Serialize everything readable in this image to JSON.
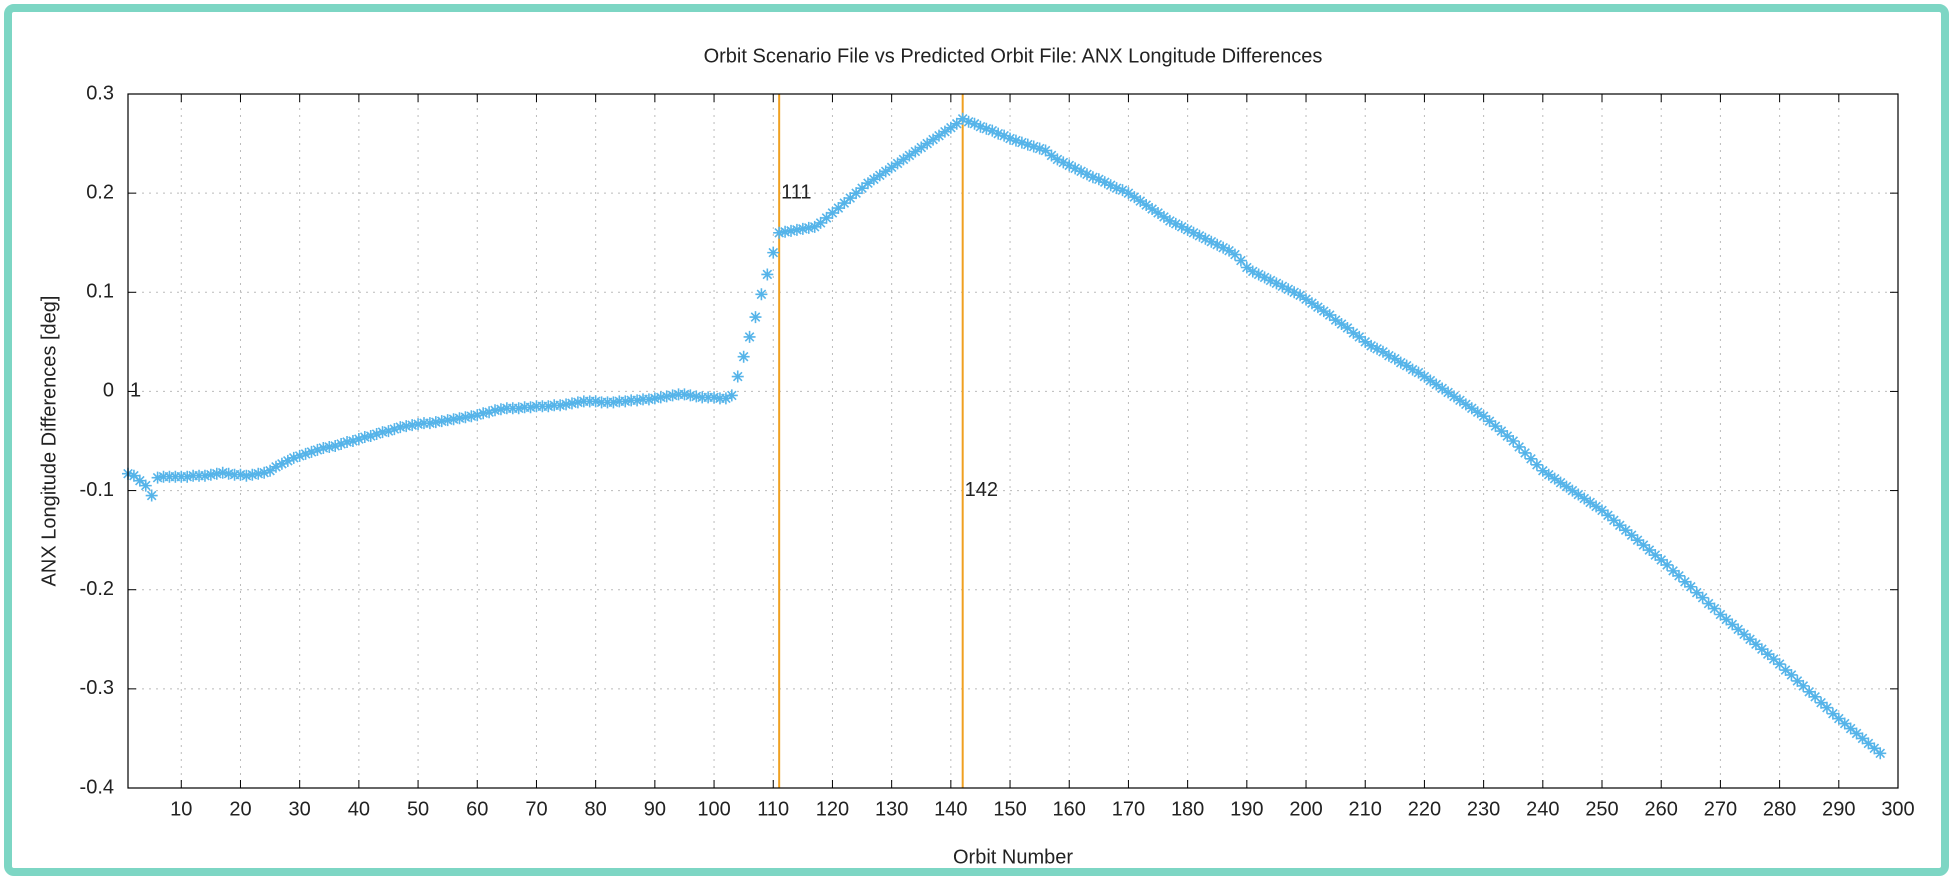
{
  "chart_data": {
    "type": "scatter",
    "title": "Orbit Scenario File vs Predicted Orbit File: ANX Longitude Differences",
    "x_label": "Orbit Number",
    "y_label": "ANX Longitude Differences [deg]",
    "marker": "*",
    "color": "#56b4e9",
    "grid": true,
    "xlim": [
      1,
      300
    ],
    "xticks": [
      10,
      20,
      30,
      40,
      50,
      60,
      70,
      80,
      90,
      100,
      110,
      120,
      130,
      140,
      150,
      160,
      170,
      180,
      190,
      200,
      210,
      220,
      230,
      240,
      250,
      260,
      270,
      280,
      290,
      300
    ],
    "ylim": [
      -0.4,
      0.3
    ],
    "yticks": [
      -0.4,
      -0.3,
      -0.2,
      -0.1,
      0,
      0.1,
      0.2,
      0.3
    ],
    "vlines": [
      {
        "x": 111,
        "color": "#f0a020"
      },
      {
        "x": 142,
        "color": "#f0a020"
      }
    ],
    "annotations": [
      {
        "text": "1",
        "x": 1,
        "y": 0
      },
      {
        "text": "111",
        "x": 111,
        "y": 0.2
      },
      {
        "text": "142",
        "x": 142,
        "y": -0.1
      }
    ],
    "x": [
      1,
      2,
      3,
      4,
      5,
      6,
      7,
      8,
      9,
      10,
      11,
      12,
      13,
      14,
      15,
      16,
      17,
      18,
      19,
      20,
      21,
      22,
      23,
      24,
      25,
      26,
      27,
      28,
      29,
      30,
      31,
      32,
      33,
      34,
      35,
      36,
      37,
      38,
      39,
      40,
      41,
      42,
      43,
      44,
      45,
      46,
      47,
      48,
      49,
      50,
      51,
      52,
      53,
      54,
      55,
      56,
      57,
      58,
      59,
      60,
      61,
      62,
      63,
      64,
      65,
      66,
      67,
      68,
      69,
      70,
      71,
      72,
      73,
      74,
      75,
      76,
      77,
      78,
      79,
      80,
      81,
      82,
      83,
      84,
      85,
      86,
      87,
      88,
      89,
      90,
      91,
      92,
      93,
      94,
      95,
      96,
      97,
      98,
      99,
      100,
      101,
      102,
      103,
      104,
      105,
      106,
      107,
      108,
      109,
      110,
      111,
      112,
      113,
      114,
      115,
      116,
      117,
      118,
      119,
      120,
      121,
      122,
      123,
      124,
      125,
      126,
      127,
      128,
      129,
      130,
      131,
      132,
      133,
      134,
      135,
      136,
      137,
      138,
      139,
      140,
      141,
      142,
      143,
      144,
      145,
      146,
      147,
      148,
      149,
      150,
      151,
      152,
      153,
      154,
      155,
      156,
      157,
      158,
      159,
      160,
      161,
      162,
      163,
      164,
      165,
      166,
      167,
      168,
      169,
      170,
      171,
      172,
      173,
      174,
      175,
      176,
      177,
      178,
      179,
      180,
      181,
      182,
      183,
      184,
      185,
      186,
      187,
      188,
      189,
      190,
      191,
      192,
      193,
      194,
      195,
      196,
      197,
      198,
      199,
      200,
      201,
      202,
      203,
      204,
      205,
      206,
      207,
      208,
      209,
      210,
      211,
      212,
      213,
      214,
      215,
      216,
      217,
      218,
      219,
      220,
      221,
      222,
      223,
      224,
      225,
      226,
      227,
      228,
      229,
      230,
      231,
      232,
      233,
      234,
      235,
      236,
      237,
      238,
      239,
      240,
      241,
      242,
      243,
      244,
      245,
      246,
      247,
      248,
      249,
      250,
      251,
      252,
      253,
      254,
      255,
      256,
      257,
      258,
      259,
      260,
      261,
      262,
      263,
      264,
      265,
      266,
      267,
      268,
      269,
      270,
      271,
      272,
      273,
      274,
      275,
      276,
      277,
      278,
      279,
      280,
      281,
      282,
      283,
      284,
      285,
      286,
      287,
      288,
      289,
      290,
      291,
      292,
      293,
      294,
      295,
      296,
      297
    ],
    "values": [
      -0.083,
      -0.085,
      -0.09,
      -0.095,
      -0.105,
      -0.087,
      -0.086,
      -0.086,
      -0.086,
      -0.086,
      -0.086,
      -0.085,
      -0.085,
      -0.085,
      -0.084,
      -0.083,
      -0.082,
      -0.083,
      -0.084,
      -0.084,
      -0.085,
      -0.084,
      -0.083,
      -0.082,
      -0.08,
      -0.076,
      -0.073,
      -0.07,
      -0.067,
      -0.065,
      -0.063,
      -0.061,
      -0.059,
      -0.057,
      -0.056,
      -0.055,
      -0.053,
      -0.051,
      -0.05,
      -0.048,
      -0.046,
      -0.045,
      -0.043,
      -0.041,
      -0.04,
      -0.038,
      -0.036,
      -0.035,
      -0.034,
      -0.033,
      -0.032,
      -0.032,
      -0.031,
      -0.03,
      -0.029,
      -0.028,
      -0.027,
      -0.026,
      -0.025,
      -0.024,
      -0.022,
      -0.021,
      -0.019,
      -0.018,
      -0.017,
      -0.017,
      -0.017,
      -0.016,
      -0.016,
      -0.015,
      -0.015,
      -0.015,
      -0.014,
      -0.014,
      -0.013,
      -0.012,
      -0.011,
      -0.01,
      -0.01,
      -0.01,
      -0.011,
      -0.011,
      -0.011,
      -0.01,
      -0.01,
      -0.009,
      -0.009,
      -0.008,
      -0.008,
      -0.007,
      -0.006,
      -0.005,
      -0.004,
      -0.003,
      -0.003,
      -0.004,
      -0.005,
      -0.006,
      -0.006,
      -0.006,
      -0.007,
      -0.007,
      -0.004,
      0.015,
      0.035,
      0.055,
      0.075,
      0.098,
      0.118,
      0.14,
      0.16,
      0.161,
      0.162,
      0.163,
      0.164,
      0.165,
      0.166,
      0.17,
      0.175,
      0.18,
      0.185,
      0.19,
      0.195,
      0.2,
      0.205,
      0.21,
      0.214,
      0.218,
      0.222,
      0.226,
      0.23,
      0.234,
      0.238,
      0.242,
      0.246,
      0.25,
      0.254,
      0.258,
      0.262,
      0.266,
      0.27,
      0.275,
      0.272,
      0.27,
      0.267,
      0.265,
      0.263,
      0.26,
      0.258,
      0.255,
      0.253,
      0.251,
      0.249,
      0.247,
      0.245,
      0.243,
      0.238,
      0.234,
      0.231,
      0.228,
      0.225,
      0.222,
      0.219,
      0.216,
      0.214,
      0.211,
      0.208,
      0.205,
      0.203,
      0.2,
      0.196,
      0.192,
      0.188,
      0.184,
      0.18,
      0.176,
      0.172,
      0.169,
      0.166,
      0.163,
      0.16,
      0.157,
      0.154,
      0.151,
      0.148,
      0.145,
      0.142,
      0.138,
      0.132,
      0.125,
      0.121,
      0.118,
      0.115,
      0.112,
      0.109,
      0.106,
      0.103,
      0.1,
      0.097,
      0.093,
      0.089,
      0.085,
      0.081,
      0.077,
      0.072,
      0.068,
      0.064,
      0.059,
      0.055,
      0.05,
      0.046,
      0.043,
      0.04,
      0.036,
      0.033,
      0.029,
      0.026,
      0.022,
      0.019,
      0.015,
      0.011,
      0.007,
      0.003,
      -0.001,
      -0.005,
      -0.009,
      -0.013,
      -0.017,
      -0.021,
      -0.025,
      -0.03,
      -0.035,
      -0.04,
      -0.045,
      -0.05,
      -0.056,
      -0.062,
      -0.068,
      -0.074,
      -0.08,
      -0.084,
      -0.088,
      -0.092,
      -0.096,
      -0.1,
      -0.104,
      -0.108,
      -0.112,
      -0.116,
      -0.12,
      -0.125,
      -0.13,
      -0.135,
      -0.14,
      -0.145,
      -0.15,
      -0.155,
      -0.16,
      -0.165,
      -0.17,
      -0.175,
      -0.181,
      -0.186,
      -0.192,
      -0.197,
      -0.203,
      -0.208,
      -0.214,
      -0.219,
      -0.225,
      -0.23,
      -0.235,
      -0.24,
      -0.245,
      -0.25,
      -0.255,
      -0.26,
      -0.265,
      -0.27,
      -0.275,
      -0.281,
      -0.286,
      -0.292,
      -0.297,
      -0.303,
      -0.308,
      -0.314,
      -0.319,
      -0.325,
      -0.33,
      -0.335,
      -0.34,
      -0.345,
      -0.35,
      -0.355,
      -0.36,
      -0.365
    ]
  }
}
